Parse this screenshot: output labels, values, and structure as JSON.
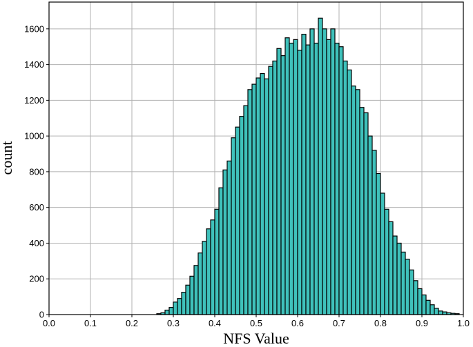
{
  "chart_data": {
    "type": "bar",
    "subtype": "histogram",
    "title": "",
    "xlabel": "NFS Value",
    "ylabel": "count",
    "xlim": [
      0.0,
      1.0
    ],
    "ylim": [
      0,
      1750
    ],
    "grid": true,
    "bar_color": "#3fc1bb",
    "bar_edge_color": "#000000",
    "bin_width": 0.01,
    "x_ticks": [
      "0.0",
      "0.1",
      "0.2",
      "0.3",
      "0.4",
      "0.5",
      "0.6",
      "0.7",
      "0.8",
      "0.9",
      "1.0"
    ],
    "y_ticks": [
      "0",
      "200",
      "400",
      "600",
      "800",
      "1000",
      "1200",
      "1400",
      "1600"
    ],
    "bins_start": [
      0.26,
      0.27,
      0.28,
      0.29,
      0.3,
      0.31,
      0.32,
      0.33,
      0.34,
      0.35,
      0.36,
      0.37,
      0.38,
      0.39,
      0.4,
      0.41,
      0.42,
      0.43,
      0.44,
      0.45,
      0.46,
      0.47,
      0.48,
      0.49,
      0.5,
      0.51,
      0.52,
      0.53,
      0.54,
      0.55,
      0.56,
      0.57,
      0.58,
      0.59,
      0.6,
      0.61,
      0.62,
      0.63,
      0.64,
      0.65,
      0.66,
      0.67,
      0.68,
      0.69,
      0.7,
      0.71,
      0.72,
      0.73,
      0.74,
      0.75,
      0.76,
      0.77,
      0.78,
      0.79,
      0.8,
      0.81,
      0.82,
      0.83,
      0.84,
      0.85,
      0.86,
      0.87,
      0.88,
      0.89,
      0.9,
      0.91,
      0.92,
      0.93,
      0.94,
      0.95,
      0.96,
      0.97,
      0.98
    ],
    "values": [
      5,
      10,
      25,
      40,
      70,
      90,
      125,
      165,
      215,
      275,
      345,
      410,
      480,
      530,
      590,
      710,
      810,
      860,
      990,
      1050,
      1110,
      1170,
      1260,
      1290,
      1325,
      1350,
      1320,
      1390,
      1420,
      1490,
      1450,
      1550,
      1520,
      1540,
      1480,
      1570,
      1510,
      1600,
      1520,
      1660,
      1600,
      1540,
      1600,
      1520,
      1500,
      1420,
      1370,
      1280,
      1260,
      1160,
      1130,
      1000,
      920,
      790,
      680,
      590,
      520,
      440,
      400,
      350,
      310,
      250,
      190,
      145,
      110,
      80,
      55,
      35,
      20,
      15,
      10,
      7,
      5
    ]
  }
}
